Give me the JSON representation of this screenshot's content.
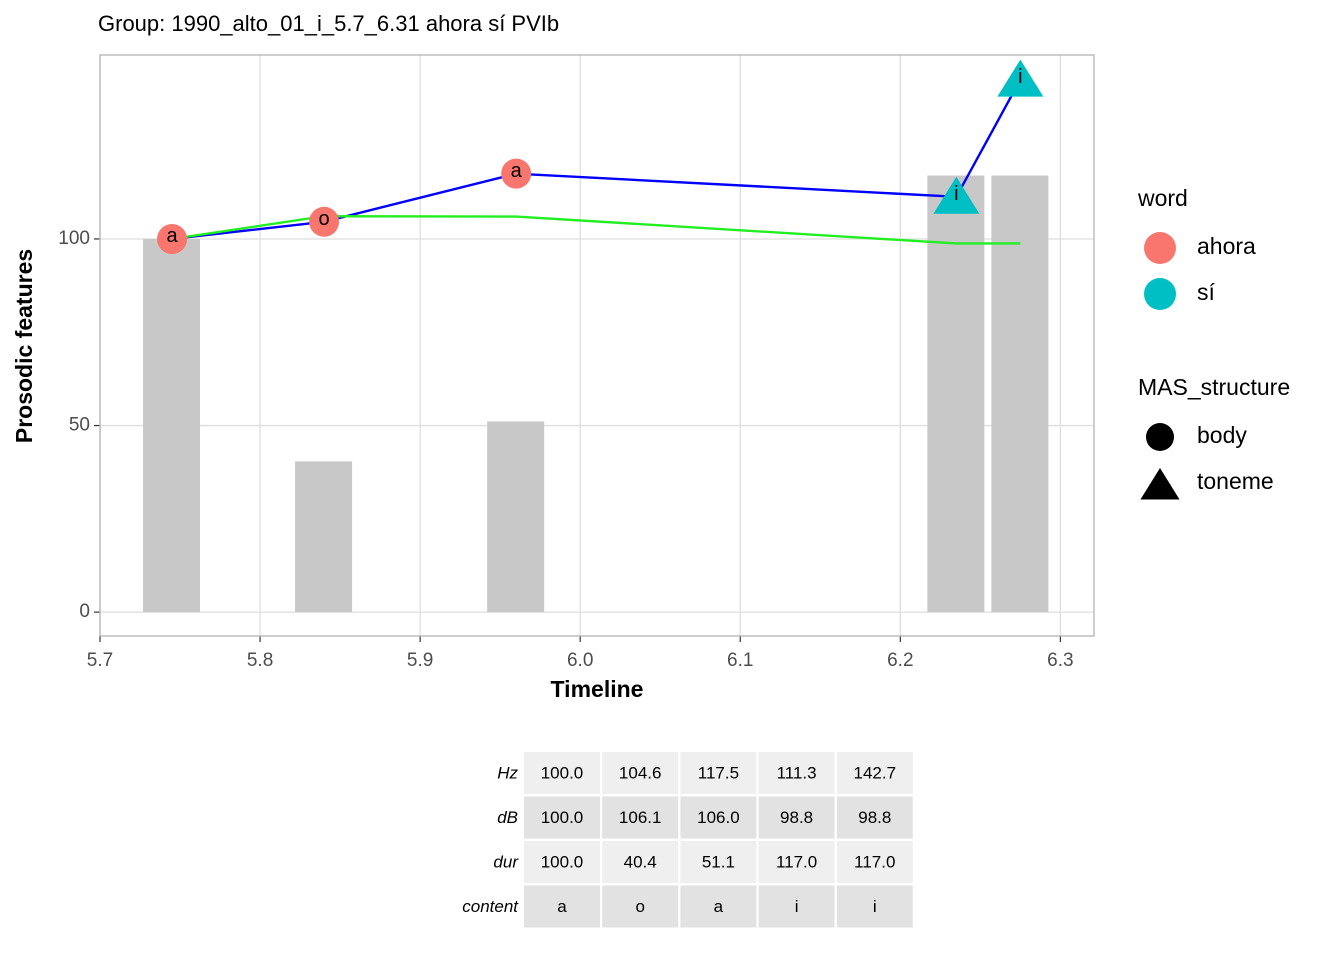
{
  "chart_data": {
    "type": "line",
    "title": "Group: 1990_alto_01_i_5.7_6.31 ahora sí PVIb",
    "x_label": "Timeline",
    "y_label": "Prosodic features",
    "x": [
      5.745,
      5.84,
      5.96,
      6.235,
      6.275
    ],
    "series": [
      {
        "name": "Hz",
        "type": "line",
        "color": "#0000ff",
        "values": [
          100,
          104.6,
          117.5,
          111.3,
          142.7
        ],
        "value_labels": [
          "100.0",
          "104.6",
          "117.5",
          "111.3",
          "142.7"
        ]
      },
      {
        "name": "dB",
        "type": "line",
        "color": "#22ee22",
        "values": [
          100,
          106.1,
          106,
          98.8,
          98.8
        ],
        "value_labels": [
          "100.0",
          "106.1",
          "106.0",
          "98.8",
          "98.8"
        ]
      },
      {
        "name": "dur",
        "type": "bar",
        "color": "#c8c8c8",
        "values": [
          100,
          40.4,
          51.1,
          117,
          117
        ],
        "value_labels": [
          "100.0",
          "40.4",
          "51.1",
          "117.0",
          "117.0"
        ]
      }
    ],
    "content_label": "content",
    "content": [
      "a",
      "o",
      "a",
      "i",
      "i"
    ],
    "word": [
      "ahora",
      "ahora",
      "ahora",
      "sí",
      "sí"
    ],
    "MAS_structure": [
      "body",
      "body",
      "body",
      "toneme",
      "toneme"
    ],
    "legends": [
      {
        "title": "word",
        "entries": [
          {
            "name": "ahora",
            "color": "#f8766d"
          },
          {
            "name": "sí",
            "color": "#00bfc4"
          }
        ]
      },
      {
        "title": "MAS_structure",
        "entries": [
          {
            "name": "body",
            "shape": "circle"
          },
          {
            "name": "toneme",
            "shape": "triangle"
          }
        ]
      }
    ],
    "xlim": [
      5.7,
      6.321
    ],
    "ylim": [
      -6.4,
      149.3
    ],
    "xticks": [
      5.7,
      5.8,
      5.9,
      {
        "value": 6,
        "label": "6.0"
      },
      6.1,
      6.2,
      6.3
    ],
    "yticks": [
      0,
      50,
      100
    ],
    "grid": true
  }
}
